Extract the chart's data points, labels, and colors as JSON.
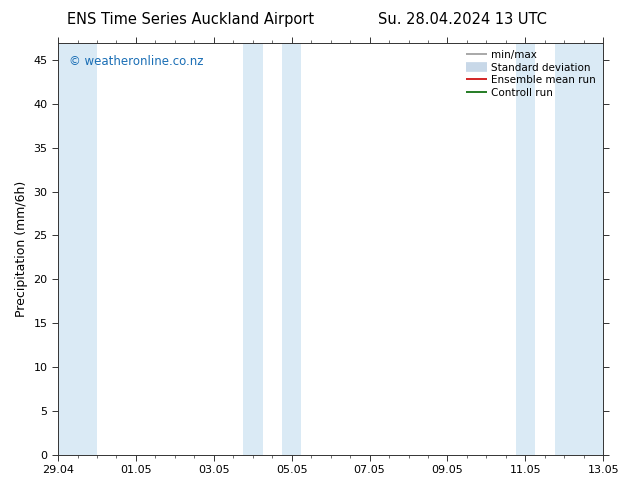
{
  "title_left": "ENS Time Series Auckland Airport",
  "title_right": "Su. 28.04.2024 13 UTC",
  "ylabel": "Precipitation (mm/6h)",
  "ylim": [
    0,
    47
  ],
  "yticks": [
    0,
    5,
    10,
    15,
    20,
    25,
    30,
    35,
    40,
    45
  ],
  "xtick_positions": [
    0,
    2,
    4,
    6,
    8,
    10,
    12,
    14
  ],
  "xtick_labels": [
    "29.04",
    "01.05",
    "03.05",
    "05.05",
    "07.05",
    "09.05",
    "11.05",
    "13.05"
  ],
  "xlim": [
    0,
    14
  ],
  "background_color": "#ffffff",
  "plot_bg_color": "#ffffff",
  "shaded_color": "#daeaf5",
  "shaded_bands": [
    [
      0.0,
      1.0
    ],
    [
      4.75,
      5.25
    ],
    [
      5.75,
      6.25
    ],
    [
      11.75,
      12.25
    ],
    [
      12.75,
      14.0
    ]
  ],
  "legend_items": [
    {
      "label": "min/max",
      "color": "#999999",
      "lw": 1.2
    },
    {
      "label": "Standard deviation",
      "color": "#c8d8e8",
      "lw": 7
    },
    {
      "label": "Ensemble mean run",
      "color": "#cc0000",
      "lw": 1.2
    },
    {
      "label": "Controll run",
      "color": "#006600",
      "lw": 1.2
    }
  ],
  "watermark": "© weatheronline.co.nz",
  "watermark_color": "#1a6eb5",
  "title_fontsize": 10.5,
  "ylabel_fontsize": 9,
  "tick_fontsize": 8,
  "legend_fontsize": 7.5,
  "watermark_fontsize": 8.5
}
